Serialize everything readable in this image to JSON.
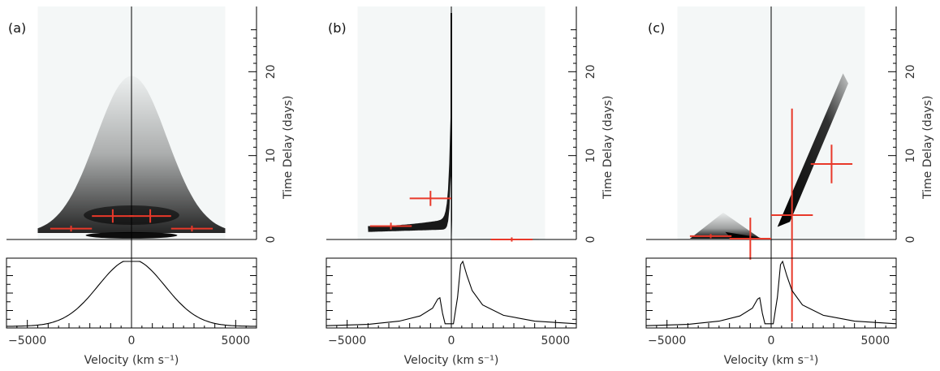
{
  "figure": {
    "x_axis_label": "Velocity (km s⁻¹)",
    "y_axis_label": "Time Delay (days)"
  },
  "colors": {
    "error_bar": "#e8392a",
    "density": "#000000",
    "background_map": "#f4f7f7"
  },
  "chart_data": [
    {
      "panel_label": "(a)",
      "type": "heatmap",
      "xlim": [
        -6000,
        6000
      ],
      "ylim": [
        -1.5,
        27
      ],
      "xticks": [
        -5000,
        0,
        5000
      ],
      "yticks": [
        0,
        10,
        20
      ],
      "map": {
        "kind": "bell",
        "sigma_velocity": 1700,
        "max_delay": 19.5,
        "dark_ring_delay": 0.3,
        "dark_ring_halfwidth_velocity": 2200,
        "dark_band_delay": 2.9
      },
      "crosses": [
        {
          "x": -2900,
          "y": 1.3,
          "xerr": 1000,
          "yerr": 0.35
        },
        {
          "x": -900,
          "y": 2.8,
          "xerr": 1000,
          "yerr": 0.8
        },
        {
          "x": 900,
          "y": 2.8,
          "xerr": 1000,
          "yerr": 0.8
        },
        {
          "x": 2900,
          "y": 1.3,
          "xerr": 1000,
          "yerr": 0.35
        }
      ],
      "profile": {
        "kind": "gaussian_flat",
        "sigma": 1600,
        "points": [
          [
            -6000,
            0.01
          ],
          [
            -5000,
            0.04
          ],
          [
            -4000,
            0.13
          ],
          [
            -3000,
            0.3
          ],
          [
            -2000,
            0.58
          ],
          [
            -1200,
            0.85
          ],
          [
            -600,
            0.97
          ],
          [
            0,
            1.0
          ],
          [
            600,
            0.97
          ],
          [
            1200,
            0.85
          ],
          [
            2000,
            0.58
          ],
          [
            3000,
            0.3
          ],
          [
            4000,
            0.13
          ],
          [
            5000,
            0.04
          ],
          [
            6000,
            0.01
          ]
        ]
      }
    },
    {
      "panel_label": "(b)",
      "type": "heatmap",
      "xlim": [
        -6000,
        6000
      ],
      "ylim": [
        -1.5,
        27
      ],
      "xticks": [
        -5000,
        0,
        5000
      ],
      "yticks": [
        0,
        10,
        20
      ],
      "map": {
        "kind": "infall_left",
        "left_edge_velocity": -4000,
        "spike_top_delay": 27,
        "right_tail_end_velocity": 4200
      },
      "crosses": [
        {
          "x": -2900,
          "y": 1.6,
          "xerr": 1000,
          "yerr": 0.4
        },
        {
          "x": -1000,
          "y": 4.9,
          "xerr": 1000,
          "yerr": 0.9
        },
        {
          "x": 2900,
          "y": 0.0,
          "xerr": 1000,
          "yerr": 0.25
        }
      ],
      "profile": {
        "kind": "asym_peaks",
        "points": [
          [
            -6000,
            0.01
          ],
          [
            -4000,
            0.03
          ],
          [
            -2500,
            0.08
          ],
          [
            -1500,
            0.16
          ],
          [
            -900,
            0.28
          ],
          [
            -650,
            0.42
          ],
          [
            -550,
            0.44
          ],
          [
            -420,
            0.2
          ],
          [
            -300,
            0.04
          ],
          [
            100,
            0.04
          ],
          [
            300,
            0.45
          ],
          [
            450,
            0.95
          ],
          [
            550,
            1.0
          ],
          [
            750,
            0.78
          ],
          [
            1000,
            0.55
          ],
          [
            1500,
            0.33
          ],
          [
            2500,
            0.17
          ],
          [
            4000,
            0.08
          ],
          [
            6000,
            0.04
          ]
        ]
      }
    },
    {
      "panel_label": "(c)",
      "type": "heatmap",
      "xlim": [
        -6000,
        6000
      ],
      "ylim": [
        -1.5,
        27
      ],
      "xticks": [
        -5000,
        0,
        5000
      ],
      "yticks": [
        0,
        10,
        20
      ],
      "map": {
        "kind": "outflow_right",
        "streak_start": [
          300,
          1.5
        ],
        "streak_end": [
          3700,
          19.8
        ],
        "triangle_apex": [
          -2300,
          3.2
        ],
        "triangle_base": [
          -3900,
          0,
          -500
        ]
      },
      "crosses": [
        {
          "x": -2900,
          "y": 0.4,
          "xerr": 1000,
          "yerr": 0.25
        },
        {
          "x": -1000,
          "y": 0.1,
          "xerr": 1000,
          "yerr": 2.5
        },
        {
          "x": 1000,
          "y": 2.9,
          "xerr": 1000,
          "yerr": 12.7
        },
        {
          "x": 2900,
          "y": 9.0,
          "xerr": 1000,
          "yerr": 2.3
        }
      ],
      "profile": {
        "kind": "asym_peaks",
        "points": [
          [
            -6000,
            0.01
          ],
          [
            -4000,
            0.03
          ],
          [
            -2500,
            0.08
          ],
          [
            -1500,
            0.16
          ],
          [
            -900,
            0.28
          ],
          [
            -650,
            0.42
          ],
          [
            -550,
            0.44
          ],
          [
            -420,
            0.2
          ],
          [
            -300,
            0.04
          ],
          [
            100,
            0.04
          ],
          [
            300,
            0.45
          ],
          [
            450,
            0.95
          ],
          [
            550,
            1.0
          ],
          [
            750,
            0.78
          ],
          [
            1000,
            0.55
          ],
          [
            1500,
            0.33
          ],
          [
            2500,
            0.17
          ],
          [
            4000,
            0.08
          ],
          [
            6000,
            0.04
          ]
        ]
      }
    }
  ]
}
